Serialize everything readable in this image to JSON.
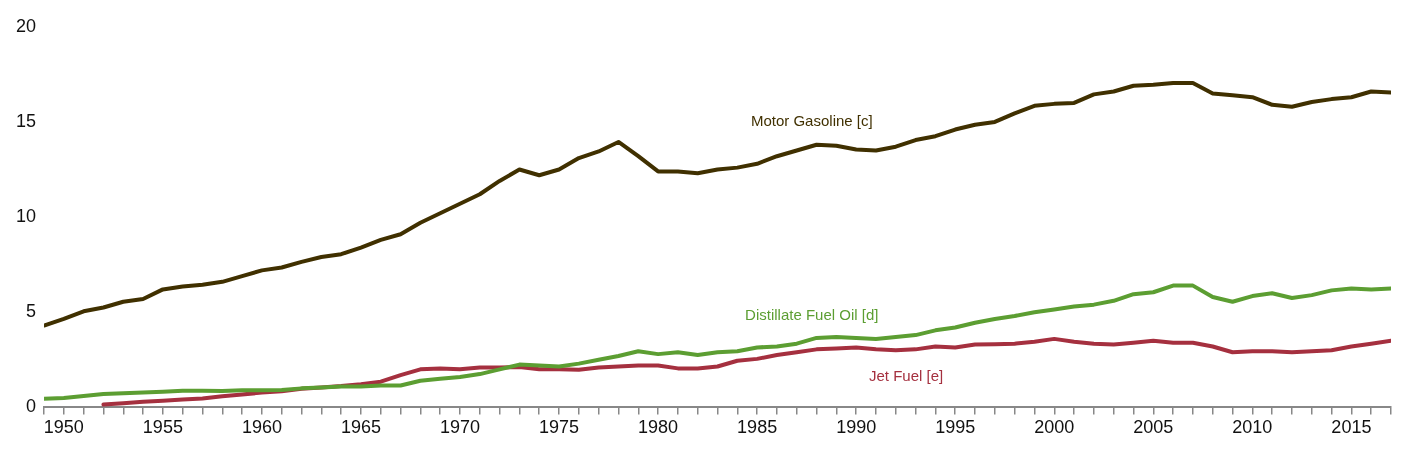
{
  "chart_data": {
    "type": "line",
    "legend": false,
    "grid": false,
    "x": [
      1949,
      1950,
      1951,
      1952,
      1953,
      1954,
      1955,
      1956,
      1957,
      1958,
      1959,
      1960,
      1961,
      1962,
      1963,
      1964,
      1965,
      1966,
      1967,
      1968,
      1969,
      1970,
      1971,
      1972,
      1973,
      1974,
      1975,
      1976,
      1977,
      1978,
      1979,
      1980,
      1981,
      1982,
      1983,
      1984,
      1985,
      1986,
      1987,
      1988,
      1989,
      1990,
      1991,
      1992,
      1993,
      1994,
      1995,
      1996,
      1997,
      1998,
      1999,
      2000,
      2001,
      2002,
      2003,
      2004,
      2005,
      2006,
      2007,
      2008,
      2009,
      2010,
      2011,
      2012,
      2013,
      2014,
      2015,
      2016,
      2017
    ],
    "series": [
      {
        "name": "Motor Gasoline [c]",
        "color": "#403000",
        "values": [
          4.3,
          4.65,
          5.05,
          5.25,
          5.55,
          5.7,
          6.2,
          6.35,
          6.45,
          6.6,
          6.9,
          7.2,
          7.35,
          7.65,
          7.9,
          8.05,
          8.4,
          8.8,
          9.1,
          9.7,
          10.2,
          10.7,
          11.2,
          11.9,
          12.5,
          12.2,
          12.5,
          13.1,
          13.45,
          13.95,
          13.2,
          12.4,
          12.4,
          12.3,
          12.5,
          12.6,
          12.8,
          13.2,
          13.5,
          13.8,
          13.75,
          13.55,
          13.5,
          13.7,
          14.05,
          14.25,
          14.6,
          14.85,
          15.0,
          15.45,
          15.85,
          15.95,
          16.0,
          16.45,
          16.6,
          16.9,
          16.95,
          17.05,
          17.05,
          16.5,
          16.4,
          16.3,
          15.9,
          15.8,
          16.05,
          16.2,
          16.3,
          16.6,
          16.55
        ]
      },
      {
        "name": "Distillate Fuel Oil [d]",
        "color": "#5c9e32",
        "values": [
          0.45,
          0.5,
          0.6,
          0.7,
          0.75,
          0.78,
          0.82,
          0.88,
          0.88,
          0.86,
          0.9,
          0.9,
          0.92,
          1.0,
          1.05,
          1.1,
          1.1,
          1.15,
          1.15,
          1.4,
          1.5,
          1.6,
          1.75,
          2.0,
          2.25,
          2.2,
          2.15,
          2.3,
          2.5,
          2.7,
          2.95,
          2.8,
          2.9,
          2.75,
          2.9,
          2.95,
          3.15,
          3.2,
          3.35,
          3.65,
          3.7,
          3.65,
          3.6,
          3.7,
          3.8,
          4.05,
          4.2,
          4.45,
          4.65,
          4.8,
          5.0,
          5.15,
          5.3,
          5.4,
          5.6,
          5.95,
          6.05,
          6.4,
          6.4,
          5.8,
          5.55,
          5.85,
          6.0,
          5.75,
          5.9,
          6.15,
          6.25,
          6.2,
          6.25
        ]
      },
      {
        "name": "Jet Fuel [e]",
        "color": "#a5303f",
        "values": [
          null,
          null,
          null,
          0.15,
          0.22,
          0.3,
          0.35,
          0.42,
          0.47,
          0.58,
          0.68,
          0.78,
          0.85,
          0.98,
          1.05,
          1.12,
          1.22,
          1.35,
          1.7,
          2.0,
          2.05,
          2.0,
          2.1,
          2.1,
          2.12,
          2.0,
          2.0,
          1.98,
          2.1,
          2.15,
          2.2,
          2.2,
          2.05,
          2.05,
          2.15,
          2.45,
          2.55,
          2.75,
          2.9,
          3.05,
          3.1,
          3.15,
          3.05,
          3.0,
          3.05,
          3.2,
          3.15,
          3.3,
          3.32,
          3.35,
          3.45,
          3.6,
          3.45,
          3.35,
          3.3,
          3.4,
          3.5,
          3.4,
          3.4,
          3.2,
          2.9,
          2.95,
          2.95,
          2.9,
          2.95,
          3.0,
          3.2,
          3.35,
          3.5
        ]
      }
    ],
    "xlim": [
      1949,
      2017
    ],
    "xticks": [
      {
        "value": 1949,
        "label": null
      },
      1950,
      {
        "value": 1951,
        "label": null
      },
      {
        "value": 1952,
        "label": null
      },
      {
        "value": 1953,
        "label": null
      },
      {
        "value": 1954,
        "label": null
      },
      1955,
      {
        "value": 1956,
        "label": null
      },
      {
        "value": 1957,
        "label": null
      },
      {
        "value": 1958,
        "label": null
      },
      {
        "value": 1959,
        "label": null
      },
      1960,
      {
        "value": 1961,
        "label": null
      },
      {
        "value": 1962,
        "label": null
      },
      {
        "value": 1963,
        "label": null
      },
      {
        "value": 1964,
        "label": null
      },
      1965,
      {
        "value": 1966,
        "label": null
      },
      {
        "value": 1967,
        "label": null
      },
      {
        "value": 1968,
        "label": null
      },
      {
        "value": 1969,
        "label": null
      },
      1970,
      {
        "value": 1971,
        "label": null
      },
      {
        "value": 1972,
        "label": null
      },
      {
        "value": 1973,
        "label": null
      },
      {
        "value": 1974,
        "label": null
      },
      1975,
      {
        "value": 1976,
        "label": null
      },
      {
        "value": 1977,
        "label": null
      },
      {
        "value": 1978,
        "label": null
      },
      {
        "value": 1979,
        "label": null
      },
      1980,
      {
        "value": 1981,
        "label": null
      },
      {
        "value": 1982,
        "label": null
      },
      {
        "value": 1983,
        "label": null
      },
      {
        "value": 1984,
        "label": null
      },
      1985,
      {
        "value": 1986,
        "label": null
      },
      {
        "value": 1987,
        "label": null
      },
      {
        "value": 1988,
        "label": null
      },
      {
        "value": 1989,
        "label": null
      },
      1990,
      {
        "value": 1991,
        "label": null
      },
      {
        "value": 1992,
        "label": null
      },
      {
        "value": 1993,
        "label": null
      },
      {
        "value": 1994,
        "label": null
      },
      1995,
      {
        "value": 1996,
        "label": null
      },
      {
        "value": 1997,
        "label": null
      },
      {
        "value": 1998,
        "label": null
      },
      {
        "value": 1999,
        "label": null
      },
      2000,
      {
        "value": 2001,
        "label": null
      },
      {
        "value": 2002,
        "label": null
      },
      {
        "value": 2003,
        "label": null
      },
      {
        "value": 2004,
        "label": null
      },
      2005,
      {
        "value": 2006,
        "label": null
      },
      {
        "value": 2007,
        "label": null
      },
      {
        "value": 2008,
        "label": null
      },
      {
        "value": 2009,
        "label": null
      },
      2010,
      {
        "value": 2011,
        "label": null
      },
      {
        "value": 2012,
        "label": null
      },
      {
        "value": 2013,
        "label": null
      },
      {
        "value": 2014,
        "label": null
      },
      2015,
      {
        "value": 2016,
        "label": null
      },
      {
        "value": 2017,
        "label": null
      }
    ],
    "ylim": [
      0,
      20
    ],
    "yticks": [
      0,
      5,
      10,
      15,
      20
    ],
    "marker": "none",
    "line_style": "solid"
  }
}
